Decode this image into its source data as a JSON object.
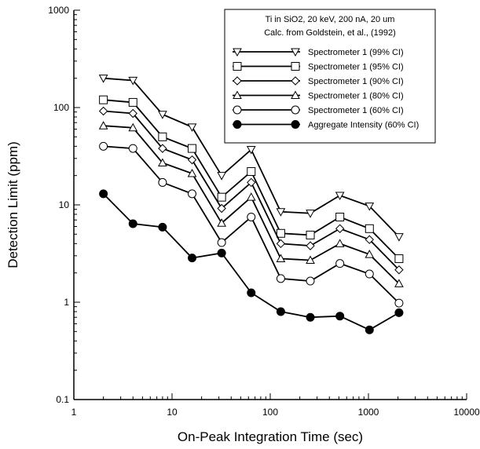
{
  "chart_data": {
    "type": "line",
    "xlabel": "On-Peak Integration Time (sec)",
    "ylabel": "Detection Limit (ppm)",
    "xscale": "log",
    "yscale": "log",
    "xlim": [
      1,
      10000
    ],
    "ylim": [
      0.1,
      1000
    ],
    "x_tick_labels": [
      "1",
      "10",
      "100",
      "1000",
      "10000"
    ],
    "y_tick_labels": [
      "0.1",
      "1",
      "10",
      "100",
      "1000"
    ],
    "grid": false,
    "legend_position": "top-right",
    "legend_title": [
      "Ti in SiO2, 20 keV, 200 nA, 20 um",
      "Calc. from Goldstein, et al., (1992)"
    ],
    "x": [
      2,
      4,
      8,
      16,
      32,
      64,
      128,
      256,
      512,
      1024,
      2048
    ],
    "series": [
      {
        "name": "Spectrometer 1 (99% CI)",
        "marker": "triangle-down",
        "values": [
          200,
          190,
          85,
          63,
          20,
          37,
          8.5,
          8.2,
          12.5,
          9.7,
          4.7
        ]
      },
      {
        "name": "Spectrometer 1 (95% CI)",
        "marker": "square",
        "values": [
          120,
          113,
          50,
          38,
          12,
          22,
          5.1,
          4.9,
          7.5,
          5.7,
          2.8
        ]
      },
      {
        "name": "Spectrometer 1 (90% CI)",
        "marker": "diamond",
        "values": [
          92,
          87,
          38,
          29,
          9.2,
          17,
          4.0,
          3.8,
          5.7,
          4.4,
          2.15
        ]
      },
      {
        "name": "Spectrometer 1 (80% CI)",
        "marker": "triangle-up",
        "values": [
          65,
          62,
          27,
          21,
          6.5,
          12,
          2.8,
          2.7,
          4.0,
          3.1,
          1.55
        ]
      },
      {
        "name": "Spectrometer 1 (60% CI)",
        "marker": "circle-open",
        "values": [
          40,
          38,
          17,
          13,
          4.1,
          7.5,
          1.75,
          1.65,
          2.5,
          1.95,
          0.98
        ]
      },
      {
        "name": "Aggregate Intensity (60% CI)",
        "marker": "circle-filled",
        "values": [
          13,
          6.4,
          5.9,
          2.85,
          3.2,
          1.25,
          0.8,
          0.7,
          0.72,
          0.52,
          0.78
        ]
      }
    ]
  }
}
